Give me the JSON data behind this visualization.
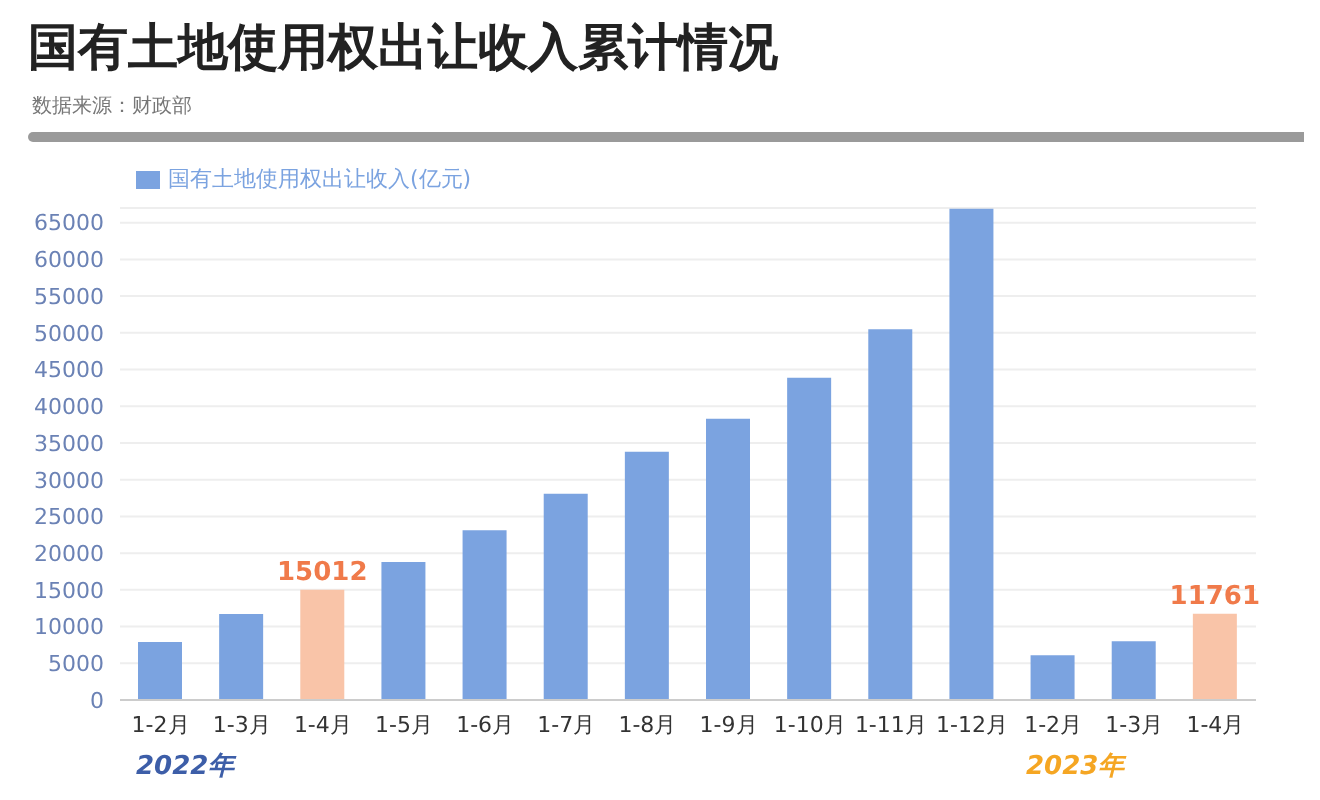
{
  "chart_data": {
    "type": "bar",
    "title": "国有土地使用权出让收入累计情况",
    "subtitle": "数据来源：财政部",
    "categories": [
      "1-2月",
      "1-3月",
      "1-4月",
      "1-5月",
      "1-6月",
      "1-7月",
      "1-8月",
      "1-9月",
      "1-10月",
      "1-11月",
      "1-12月",
      "1-2月",
      "1-3月",
      "1-4月"
    ],
    "series": [
      {
        "name": "国有土地使用权出让收入(亿元)",
        "color": "#7ba3e0",
        "values": [
          7900,
          11700,
          15012,
          18800,
          23100,
          28100,
          33800,
          38300,
          43900,
          50500,
          66900,
          6100,
          8000,
          11761
        ],
        "colors": [
          "#7ba3e0",
          "#7ba3e0",
          "#f9c4a8",
          "#7ba3e0",
          "#7ba3e0",
          "#7ba3e0",
          "#7ba3e0",
          "#7ba3e0",
          "#7ba3e0",
          "#7ba3e0",
          "#7ba3e0",
          "#7ba3e0",
          "#7ba3e0",
          "#f9c4a8"
        ],
        "value_labels": [
          null,
          null,
          "15012",
          null,
          null,
          null,
          null,
          null,
          null,
          null,
          null,
          null,
          null,
          "11761"
        ]
      }
    ],
    "ylim": [
      0,
      67000
    ],
    "yticks": [
      0,
      5000,
      10000,
      15000,
      20000,
      25000,
      30000,
      35000,
      40000,
      45000,
      50000,
      55000,
      60000,
      65000
    ],
    "grid": "y",
    "legend": "top left",
    "annotations": [
      "2022年",
      "2023年"
    ]
  }
}
